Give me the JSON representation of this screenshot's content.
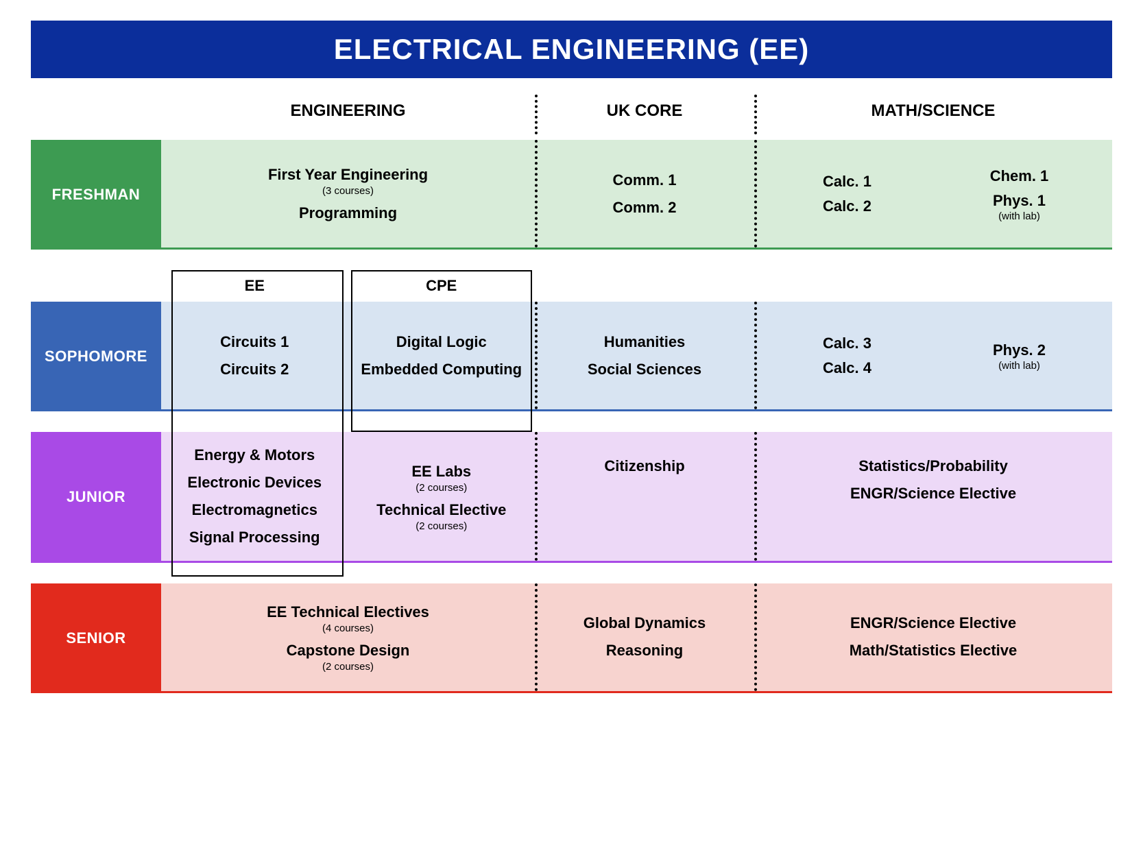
{
  "title": "ELECTRICAL ENGINEERING (EE)",
  "columns": {
    "engineering": "ENGINEERING",
    "uk_core": "UK CORE",
    "math_science": "MATH/SCIENCE"
  },
  "subcolumns": {
    "ee": "EE",
    "cpe": "CPE"
  },
  "colors": {
    "title_bg": "#0b2e9b",
    "freshman_label": "#3d9b52",
    "freshman_body": "#d8ecd9",
    "freshman_border": "#3d9b52",
    "sophomore_label": "#3865b5",
    "sophomore_body": "#d8e4f2",
    "sophomore_border": "#3865b5",
    "junior_label": "#a94ae6",
    "junior_body": "#edd9f7",
    "junior_border": "#a94ae6",
    "senior_label": "#e12a1d",
    "senior_body": "#f7d3cf",
    "senior_border": "#e12a1d"
  },
  "years": {
    "freshman": {
      "label": "FRESHMAN",
      "engineering": [
        {
          "title": "First Year Engineering",
          "sub": "(3 courses)"
        },
        {
          "title": "Programming"
        }
      ],
      "uk_core": [
        {
          "title": "Comm. 1"
        },
        {
          "title": "Comm. 2"
        }
      ],
      "math_left": [
        {
          "title": "Calc. 1"
        },
        {
          "title": "Calc. 2"
        }
      ],
      "math_right": [
        {
          "title": "Chem. 1"
        },
        {
          "title": "Phys. 1",
          "sub": "(with lab)"
        }
      ]
    },
    "sophomore": {
      "label": "SOPHOMORE",
      "eng_left": [
        {
          "title": "Circuits 1"
        },
        {
          "title": "Circuits 2"
        }
      ],
      "eng_right": [
        {
          "title": "Digital Logic"
        },
        {
          "title": "Embedded Computing"
        }
      ],
      "uk_core": [
        {
          "title": "Humanities"
        },
        {
          "title": "Social Sciences"
        }
      ],
      "math_left": [
        {
          "title": "Calc. 3"
        },
        {
          "title": "Calc. 4"
        }
      ],
      "math_right": [
        {
          "title": "Phys. 2",
          "sub": "(with lab)"
        }
      ]
    },
    "junior": {
      "label": "JUNIOR",
      "eng_left": [
        {
          "title": "Energy & Motors"
        },
        {
          "title": "Electronic Devices"
        },
        {
          "title": "Electromagnetics"
        },
        {
          "title": "Signal Processing"
        }
      ],
      "eng_right": [
        {
          "title": "EE Labs",
          "sub": "(2 courses)"
        },
        {
          "title": "Technical Elective",
          "sub": "(2 courses)"
        }
      ],
      "uk_core": [
        {
          "title": "Citizenship"
        }
      ],
      "math": [
        {
          "title": "Statistics/Probability"
        },
        {
          "title": "ENGR/Science Elective"
        }
      ]
    },
    "senior": {
      "label": "SENIOR",
      "engineering": [
        {
          "title": "EE Technical Electives",
          "sub": "(4 courses)"
        },
        {
          "title": "Capstone Design",
          "sub": "(2 courses)"
        }
      ],
      "uk_core": [
        {
          "title": "Global Dynamics"
        },
        {
          "title": "Reasoning"
        }
      ],
      "math": [
        {
          "title": "ENGR/Science Elective"
        },
        {
          "title": "Math/Statistics Elective"
        }
      ]
    }
  }
}
